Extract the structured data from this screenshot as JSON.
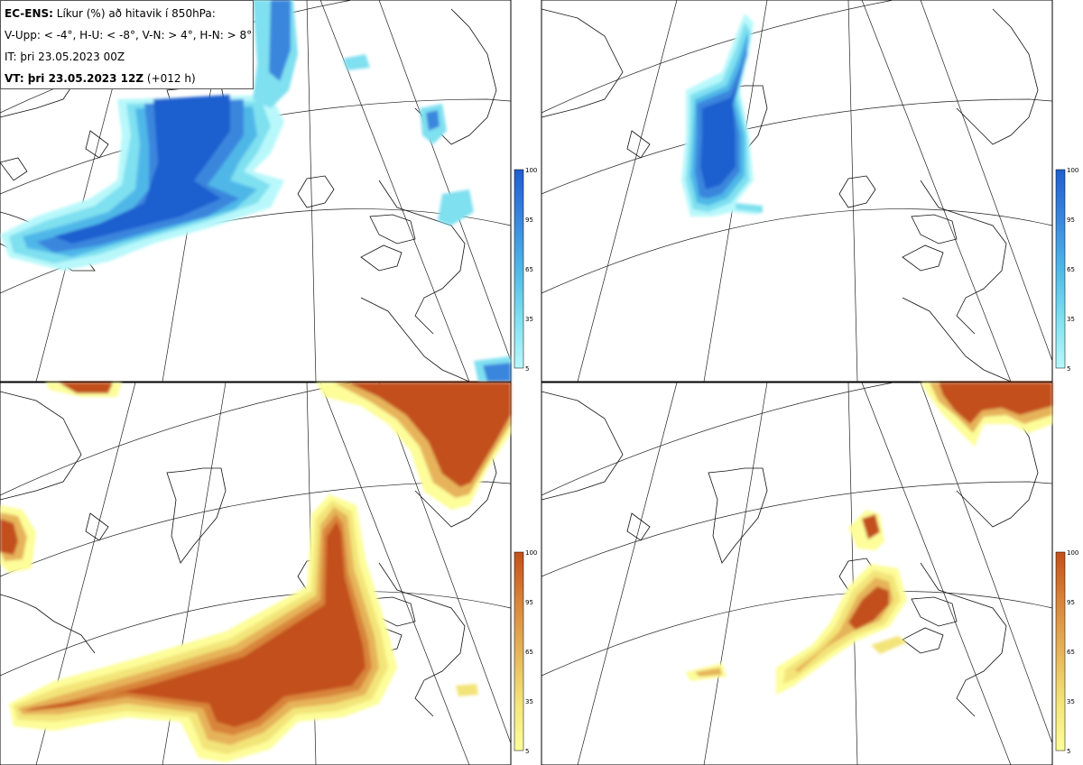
{
  "header": {
    "model": "EC-ENS:",
    "title": "Líkur (%) að hitavik í 850hPa:",
    "thresholds": "V-Upp: < -4°, H-U: < -8°, V-N: > 4°, H-N: > 8°",
    "initial_time": "IT: þri 23.05.2023 00Z",
    "valid_label": "VT: þri 23.05.2023 12Z",
    "lead_time": "(+012 h)"
  },
  "panels": [
    {
      "id": "V-Upp",
      "colormap": "blue"
    },
    {
      "id": "H-U",
      "colormap": "blue"
    },
    {
      "id": "V-N",
      "colormap": "orange"
    },
    {
      "id": "H-N",
      "colormap": "orange"
    }
  ],
  "colorbar": {
    "ticks": [
      "100",
      "95",
      "65",
      "35",
      "5"
    ],
    "blue_colors": [
      "#1f5fcf",
      "#3a86dd",
      "#4fb7e8",
      "#7fe0f0",
      "#b8f8fb"
    ],
    "orange_colors": [
      "#c2501a",
      "#d8853a",
      "#e6b35a",
      "#f3e479",
      "#fdfd9a"
    ]
  }
}
